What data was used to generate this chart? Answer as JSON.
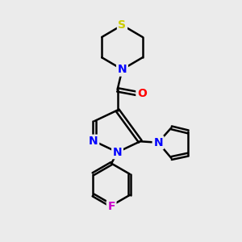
{
  "bg_color": "#ebebeb",
  "bond_color": "#000000",
  "N_color": "#0000ff",
  "O_color": "#ff0000",
  "F_color": "#cc00cc",
  "S_color": "#cccc00",
  "line_width": 1.8,
  "figsize": [
    3.0,
    3.0
  ],
  "dpi": 100,
  "xlim": [
    0,
    10
  ],
  "ylim": [
    0,
    10
  ]
}
